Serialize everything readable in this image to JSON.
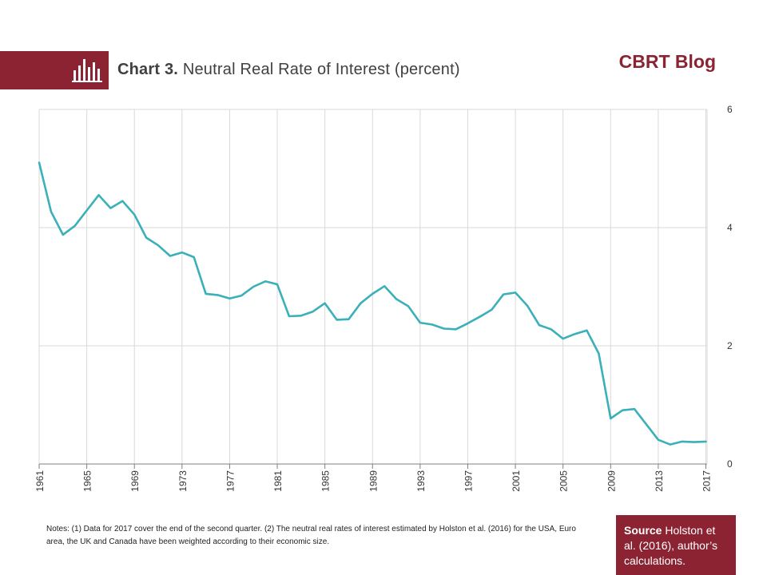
{
  "header": {
    "chart_number": "Chart 3.",
    "chart_title": "Neutral Real Rate of Interest (percent)",
    "brand": "CBRT Blog",
    "banner_icon": "bar-chart-icon"
  },
  "colors": {
    "accent": "#8b2332",
    "line": "#3ab0b8",
    "grid": "#d9d9d9"
  },
  "notes": "Notes: (1) Data for 2017 cover the end of the second quarter. (2) The neutral real rates of interest estimated by Holston et al. (2016) for the USA, Euro area, the UK and Canada have been weighted according to their economic size.",
  "source": {
    "label": "Source",
    "text": "Holston et al. (2016), author’s calculations."
  },
  "chart_data": {
    "type": "line",
    "title": "Neutral Real Rate of Interest (percent)",
    "xlabel": "",
    "ylabel": "",
    "xlim": [
      1961,
      2017.1
    ],
    "ylim": [
      0,
      6
    ],
    "y_axis_side": "right",
    "grid": true,
    "x_ticks": [
      "1961",
      "1965",
      "1969",
      "1973",
      "1977",
      "1981",
      "1985",
      "1989",
      "1993",
      "1997",
      "2001",
      "2005",
      "2009",
      "2013",
      "2017"
    ],
    "y_ticks": [
      "0",
      "2",
      "4",
      "6"
    ],
    "series": [
      {
        "x": [
          1961,
          1962,
          1963,
          1964,
          1965,
          1966,
          1967,
          1968,
          1969,
          1970,
          1971,
          1972,
          1973,
          1974,
          1975,
          1976,
          1977,
          1978,
          1979,
          1980,
          1981,
          1982,
          1983,
          1984,
          1985,
          1986,
          1987,
          1988,
          1989,
          1990,
          1991,
          1992,
          1993,
          1994,
          1995,
          1996,
          1997,
          1998,
          1999,
          2000,
          2001,
          2002,
          2003,
          2004,
          2005,
          2006,
          2007,
          2008,
          2009,
          2010,
          2011,
          2012,
          2013,
          2014,
          2015,
          2016,
          2017
        ],
        "values": [
          5.1,
          4.27,
          3.88,
          4.03,
          4.29,
          4.55,
          4.33,
          4.45,
          4.22,
          3.83,
          3.7,
          3.52,
          3.58,
          3.5,
          2.88,
          2.86,
          2.8,
          2.85,
          3.0,
          3.09,
          3.04,
          2.5,
          2.51,
          2.58,
          2.72,
          2.44,
          2.45,
          2.72,
          2.88,
          3.01,
          2.79,
          2.67,
          2.39,
          2.36,
          2.29,
          2.28,
          2.38,
          2.49,
          2.61,
          2.87,
          2.9,
          2.68,
          2.35,
          2.28,
          2.12,
          2.2,
          2.26,
          1.87,
          0.77,
          0.91,
          0.93,
          0.67,
          0.41,
          0.33,
          0.38,
          0.37,
          0.38
        ]
      }
    ]
  }
}
